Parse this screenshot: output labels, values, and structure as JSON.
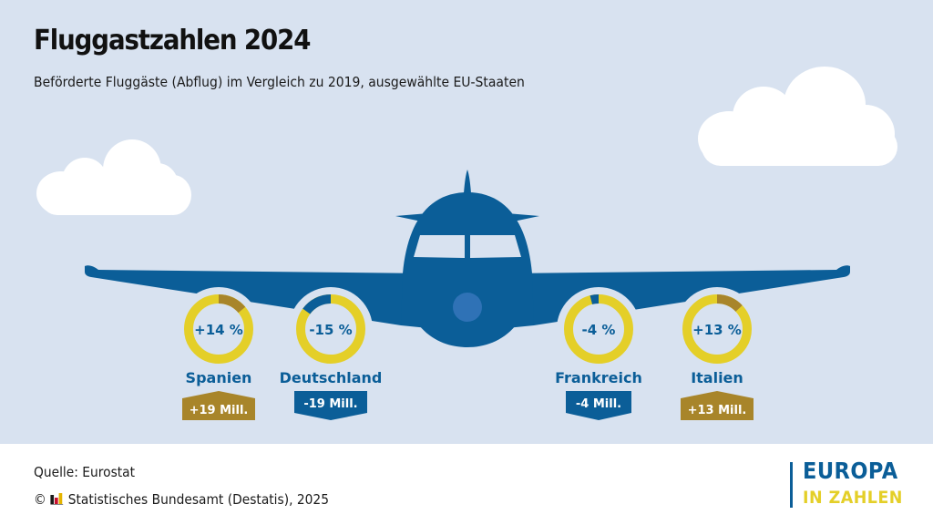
{
  "title": "Fluggastzahlen 2024",
  "subtitle": "Beförderte Fluggäste (Abflug) im Vergleich zu 2019, ausgewählte EU-Staaten",
  "colors": {
    "sky": "#d8e2f0",
    "plane": "#0b5e98",
    "engine": "#2f72b6",
    "ring": "#e4cf28",
    "increase": "#a8852a",
    "decrease": "#0b5e98",
    "cloud": "#ffffff"
  },
  "chart_data": {
    "type": "pie",
    "title": "Fluggastzahlen 2024",
    "subtitle": "Beförderte Fluggäste (Abflug) im Vergleich zu 2019, ausgewählte EU-Staaten",
    "unit_pct": "%",
    "series": [
      {
        "country": "Spanien",
        "change_pct": 14,
        "pct_label": "+14 %",
        "change_mill": 19,
        "mill_label": "+19 Mill."
      },
      {
        "country": "Deutschland",
        "change_pct": -15,
        "pct_label": "-15 %",
        "change_mill": -19,
        "mill_label": "-19 Mill."
      },
      {
        "country": "Frankreich",
        "change_pct": -4,
        "pct_label": "-4 %",
        "change_mill": -4,
        "mill_label": "-4 Mill."
      },
      {
        "country": "Italien",
        "change_pct": 13,
        "pct_label": "+13 %",
        "change_mill": 13,
        "mill_label": "+13 Mill."
      }
    ]
  },
  "footer": {
    "source": "Quelle: Eurostat",
    "copyright_symbol": "©",
    "copyright": "Statistisches Bundesamt (Destatis), 2025"
  },
  "logo": {
    "line1": "EUROPA",
    "line2": "IN ZAHLEN"
  }
}
